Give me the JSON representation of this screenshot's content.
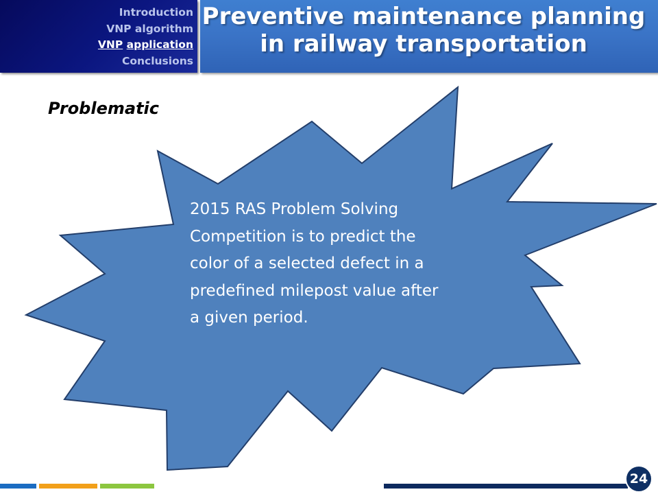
{
  "navigation": {
    "items": [
      {
        "label": "Introduction",
        "active": false
      },
      {
        "label": "VNP algorithm",
        "active": false
      },
      {
        "label": "VNP application",
        "active": true
      },
      {
        "label": "Conclusions",
        "active": false
      }
    ],
    "active_word_1": "VNP",
    "active_word_2": "application"
  },
  "header": {
    "title_line_1": "Preventive maintenance planning",
    "title_line_2": "in railway transportation"
  },
  "content": {
    "section_label": "Problematic",
    "burst_text": "2015 RAS Problem Solving Competition  is to predict the color of a selected defect in a predefined milepost value after a given period."
  },
  "footer": {
    "page_number": "24"
  },
  "colors": {
    "nav_background": "#0b1680",
    "title_background": "#3a73c6",
    "burst_fill": "#4f81bd",
    "burst_stroke": "#233e6a",
    "accent_blue": "#1b6cc2",
    "accent_orange": "#f2a01a",
    "accent_green": "#8cc63f",
    "accent_navy": "#0d2a5e"
  }
}
